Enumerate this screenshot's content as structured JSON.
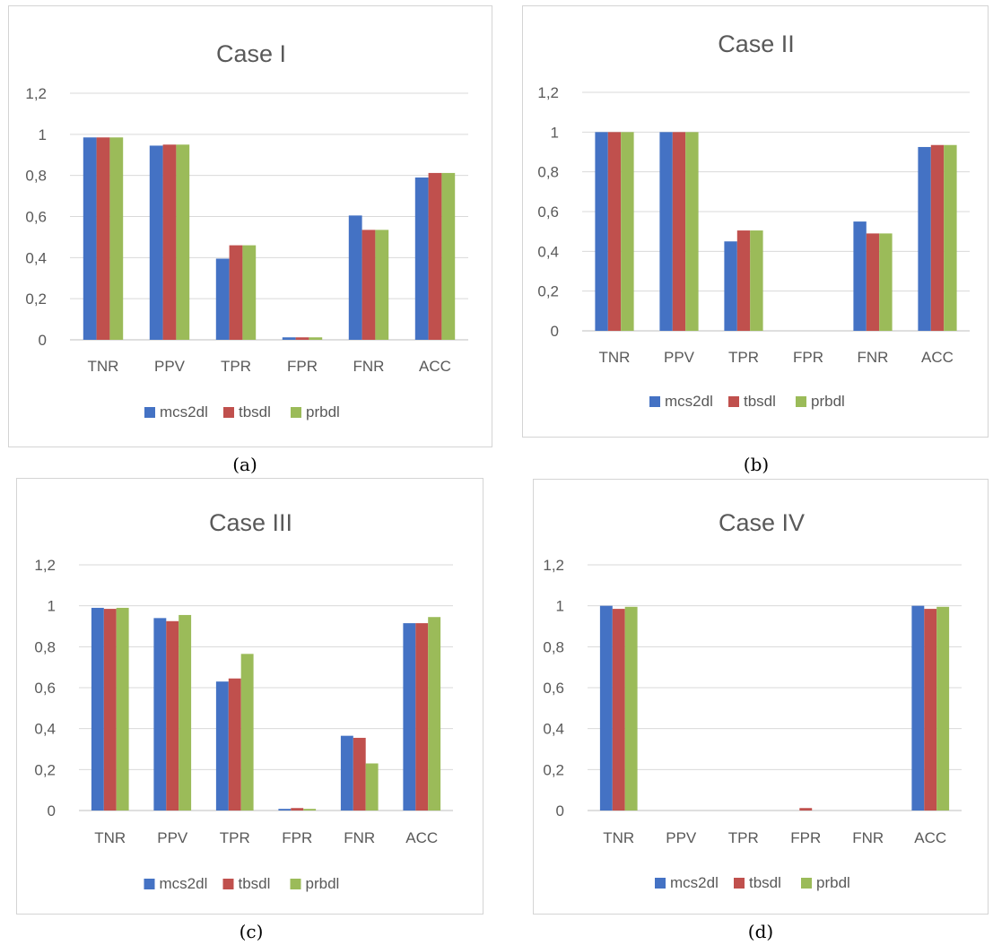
{
  "panel_captions": [
    "(a)",
    "(b)",
    "(c)",
    "(d)"
  ],
  "colors": {
    "mcs2dl": "#4472C4",
    "tbsdl": "#C0504D",
    "prbdl": "#9BBB59",
    "grid": "#d9d9d9",
    "text": "#595959"
  },
  "chart_data": [
    {
      "type": "bar",
      "title": "Case I",
      "categories": [
        "TNR",
        "PPV",
        "TPR",
        "FPR",
        "FNR",
        "ACC"
      ],
      "yticks": [
        "0",
        "0,2",
        "0,4",
        "0,6",
        "0,8",
        "1",
        "1,2"
      ],
      "ylim": [
        0,
        1.2
      ],
      "grid": true,
      "legend_position": "bottom",
      "series": [
        {
          "name": "mcs2dl",
          "values": [
            0.985,
            0.945,
            0.395,
            0.012,
            0.605,
            0.79
          ]
        },
        {
          "name": "tbsdl",
          "values": [
            0.985,
            0.95,
            0.46,
            0.012,
            0.535,
            0.812
          ]
        },
        {
          "name": "prbdl",
          "values": [
            0.985,
            0.95,
            0.46,
            0.012,
            0.535,
            0.812
          ]
        }
      ]
    },
    {
      "type": "bar",
      "title": "Case II",
      "categories": [
        "TNR",
        "PPV",
        "TPR",
        "FPR",
        "FNR",
        "ACC"
      ],
      "yticks": [
        "0",
        "0,2",
        "0,4",
        "0,6",
        "0,8",
        "1",
        "1,2"
      ],
      "ylim": [
        0,
        1.2
      ],
      "grid": true,
      "legend_position": "bottom",
      "series": [
        {
          "name": "mcs2dl",
          "values": [
            1.0,
            1.0,
            0.45,
            0.0,
            0.55,
            0.925
          ]
        },
        {
          "name": "tbsdl",
          "values": [
            1.0,
            1.0,
            0.505,
            0.0,
            0.49,
            0.935
          ]
        },
        {
          "name": "prbdl",
          "values": [
            1.0,
            1.0,
            0.505,
            0.0,
            0.49,
            0.935
          ]
        }
      ]
    },
    {
      "type": "bar",
      "title": "Case III",
      "categories": [
        "TNR",
        "PPV",
        "TPR",
        "FPR",
        "FNR",
        "ACC"
      ],
      "yticks": [
        "0",
        "0,2",
        "0,4",
        "0,6",
        "0,8",
        "1",
        "1,2"
      ],
      "ylim": [
        0,
        1.2
      ],
      "grid": true,
      "legend_position": "bottom",
      "series": [
        {
          "name": "mcs2dl",
          "values": [
            0.99,
            0.94,
            0.63,
            0.008,
            0.365,
            0.915
          ]
        },
        {
          "name": "tbsdl",
          "values": [
            0.985,
            0.925,
            0.645,
            0.012,
            0.355,
            0.915
          ]
        },
        {
          "name": "prbdl",
          "values": [
            0.99,
            0.955,
            0.765,
            0.008,
            0.23,
            0.945
          ]
        }
      ]
    },
    {
      "type": "bar",
      "title": "Case IV",
      "categories": [
        "TNR",
        "PPV",
        "TPR",
        "FPR",
        "FNR",
        "ACC"
      ],
      "yticks": [
        "0",
        "0,2",
        "0,4",
        "0,6",
        "0,8",
        "1",
        "1,2"
      ],
      "ylim": [
        0,
        1.2
      ],
      "grid": true,
      "legend_position": "bottom",
      "series": [
        {
          "name": "mcs2dl",
          "values": [
            1.0,
            0.0,
            0.0,
            0.0,
            0.0,
            1.0
          ]
        },
        {
          "name": "tbsdl",
          "values": [
            0.985,
            0.0,
            0.0,
            0.012,
            0.0,
            0.985
          ]
        },
        {
          "name": "prbdl",
          "values": [
            0.995,
            0.0,
            0.0,
            0.0,
            0.0,
            0.995
          ]
        }
      ]
    }
  ]
}
